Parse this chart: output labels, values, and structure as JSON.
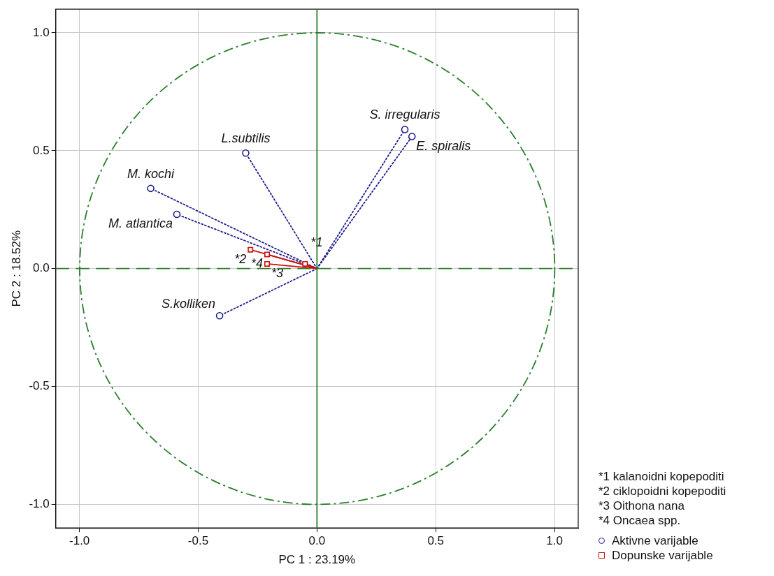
{
  "chart_data": {
    "type": "scatter",
    "xlabel": "PC 1 : 23.19%",
    "ylabel": "PC 2 : 18.52%",
    "xlim": [
      -1.1,
      1.1
    ],
    "ylim": [
      -1.1,
      1.1
    ],
    "xticks": [
      {
        "value": -1,
        "label": "-1.0"
      },
      {
        "value": -0.5,
        "label": "-0.5"
      },
      {
        "value": 0,
        "label": "0.0"
      },
      {
        "value": 0.5,
        "label": "0.5"
      },
      {
        "value": 1,
        "label": "1.0"
      }
    ],
    "yticks": [
      {
        "value": -1,
        "label": "-1.0"
      },
      {
        "value": -0.5,
        "label": "-0.5"
      },
      {
        "value": 0,
        "label": "0.0"
      },
      {
        "value": 0.5,
        "label": "0.5"
      },
      {
        "value": 1,
        "label": "1.0"
      }
    ],
    "grid": true,
    "legend": "bottom right",
    "series": [
      {
        "name": "Aktivne varijable",
        "color": "#1c1c8e",
        "marker": "circle",
        "line_style": "dotted",
        "x": [
          -0.3,
          -0.7,
          -0.59,
          -0.41,
          0.37,
          0.4
        ],
        "values": [
          0.49,
          0.34,
          0.23,
          -0.2,
          0.59,
          0.56
        ]
      },
      {
        "name": "Dopunske varijable",
        "color": "#cc1111",
        "marker": "square",
        "line_style": "solid",
        "x": [
          -0.28,
          -0.21,
          -0.21,
          -0.05
        ],
        "values": [
          0.08,
          0.06,
          0.02,
          0.02
        ]
      }
    ],
    "ref_lines": [
      {
        "axis": "x",
        "value": 0,
        "color": "#2a7d2a",
        "line_style": "solid"
      },
      {
        "axis": "y",
        "value": 0,
        "color": "#2a7d2a",
        "line_style": "dashed"
      }
    ],
    "annotations": [
      {
        "text": "S. irregularis",
        "x": 0.37,
        "y": 0.59
      },
      {
        "text": "E. spiralis",
        "x": 0.4,
        "y": 0.56
      },
      {
        "text": "L.subtilis",
        "x": -0.3,
        "y": 0.49
      },
      {
        "text": "M. kochi",
        "x": -0.7,
        "y": 0.34
      },
      {
        "text": "M. atlantica",
        "x": -0.59,
        "y": 0.23
      },
      {
        "text": "S.kolliken",
        "x": -0.41,
        "y": -0.2
      },
      {
        "text": "*2",
        "x": -0.28,
        "y": 0.08
      },
      {
        "text": "*4",
        "x": -0.21,
        "y": 0.06
      },
      {
        "text": "*3",
        "x": -0.21,
        "y": 0.02
      },
      {
        "text": "*1",
        "x": -0.05,
        "y": 0.02
      },
      "*1 kalanoidni kopepoditi",
      "*2 ciklopoidni kopepoditi",
      "*3 Oithona nana",
      "*4 Oncaea spp."
    ]
  }
}
